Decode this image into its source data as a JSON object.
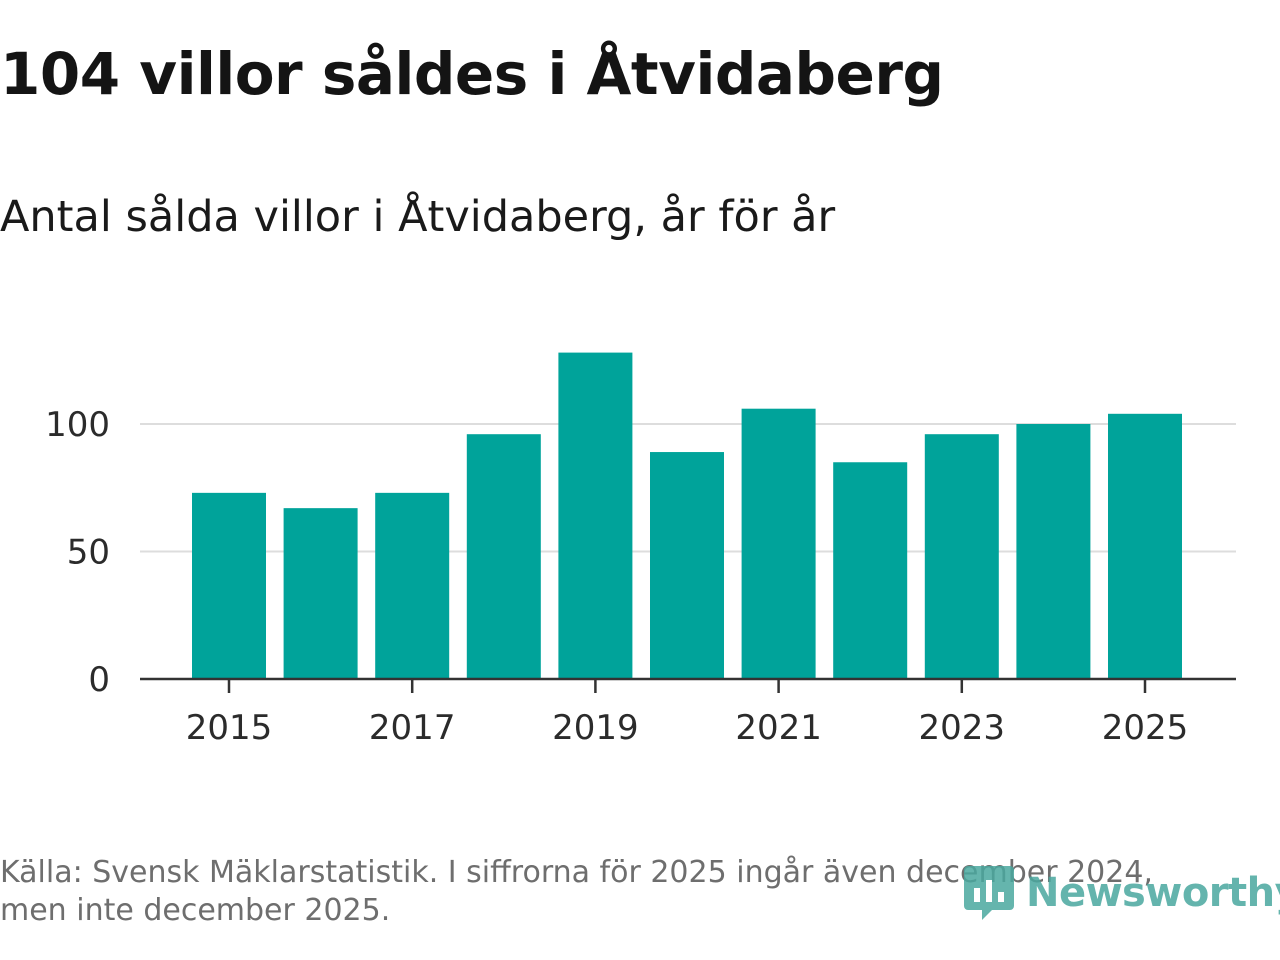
{
  "header": {
    "title": "104 villor såldes i Åtvidaberg",
    "subtitle": "Antal sålda villor i Åtvidaberg, år för år"
  },
  "footer": {
    "source": "Källa: Svensk Mäklarstatistik. I siffrorna för 2025 ingår även december 2024, men inte december 2025.",
    "logo_text": "Newsworthy"
  },
  "colors": {
    "bar": "#00a39a",
    "grid": "#dddddd",
    "axis": "#333333",
    "logo": "#4aa89f"
  },
  "chart_data": {
    "type": "bar",
    "title": "Antal sålda villor i Åtvidaberg, år för år",
    "xlabel": "",
    "ylabel": "",
    "categories": [
      "2015",
      "2016",
      "2017",
      "2018",
      "2019",
      "2020",
      "2021",
      "2022",
      "2023",
      "2024",
      "2025"
    ],
    "values": [
      73,
      67,
      73,
      96,
      128,
      89,
      106,
      85,
      96,
      100,
      104
    ],
    "x_tick_labels": [
      "2015",
      "2017",
      "2019",
      "2021",
      "2023",
      "2025"
    ],
    "y_ticks": [
      0,
      50,
      100
    ],
    "ylim": [
      0,
      135
    ],
    "grid": true,
    "legend": "none"
  }
}
